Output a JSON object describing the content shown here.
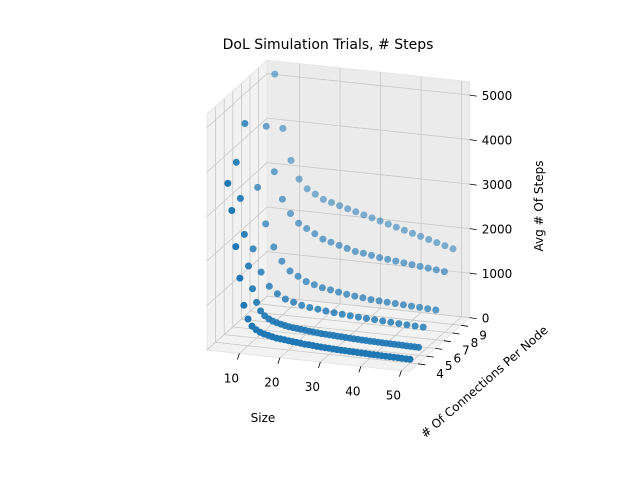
{
  "chart_data": {
    "type": "scatter3d",
    "title": "DoL Simulation Trials, # Steps",
    "xlabel": "Size",
    "ylabel": "# Of Connections Per Node",
    "zlabel": "Avg # Of Steps",
    "xlim": [
      2,
      52
    ],
    "ylim": [
      3,
      10
    ],
    "zlim": [
      0,
      5300
    ],
    "xticks": [
      10,
      20,
      30,
      40,
      50
    ],
    "yticks": [
      4,
      5,
      6,
      7,
      8,
      9
    ],
    "zticks": [
      0,
      1000,
      2000,
      3000,
      4000,
      5000
    ],
    "grid": true,
    "color": "#1f77b4",
    "series": [
      {
        "y": 4,
        "x": [
          5,
          6,
          7,
          8,
          9,
          10,
          11,
          12,
          13,
          14,
          15,
          16,
          17,
          18,
          19,
          20,
          21,
          22,
          23,
          24,
          25,
          26,
          27,
          28,
          29,
          30,
          31,
          32,
          33,
          34,
          35,
          36,
          37,
          38,
          39,
          40,
          41,
          42,
          43,
          44,
          45,
          46,
          47,
          48,
          49,
          50
        ],
        "z": [
          3600,
          3000,
          2200,
          1500,
          900,
          600,
          450,
          380,
          330,
          300,
          280,
          260,
          240,
          230,
          220,
          210,
          200,
          190,
          180,
          170,
          165,
          160,
          150,
          145,
          140,
          135,
          130,
          125,
          120,
          118,
          115,
          112,
          110,
          108,
          105,
          102,
          100,
          98,
          96,
          94,
          92,
          90,
          88,
          86,
          84,
          82
        ]
      },
      {
        "y": 5,
        "x": [
          5,
          6,
          7,
          8,
          9,
          10,
          11,
          12,
          13,
          14,
          15,
          16,
          17,
          18,
          19,
          20,
          21,
          22,
          23,
          24,
          25,
          26,
          27,
          28,
          29,
          30,
          31,
          32,
          33,
          34,
          35,
          36,
          37,
          38,
          39,
          40,
          41,
          42,
          43,
          44,
          45,
          46,
          47,
          48,
          49,
          50
        ],
        "z": [
          3900,
          3100,
          2300,
          1600,
          1100,
          800,
          620,
          520,
          460,
          420,
          390,
          370,
          350,
          330,
          320,
          310,
          300,
          290,
          280,
          270,
          262,
          255,
          250,
          245,
          240,
          235,
          230,
          225,
          220,
          215,
          212,
          208,
          205,
          202,
          200,
          197,
          195,
          193,
          190,
          188,
          186,
          184,
          182,
          180,
          178,
          176
        ]
      },
      {
        "y": 6,
        "x": [
          5,
          7,
          9,
          11,
          13,
          15,
          17,
          19,
          21,
          23,
          25,
          27,
          29,
          31,
          33,
          35,
          37,
          39,
          41,
          43,
          45,
          47,
          49
        ],
        "z": [
          4600,
          1800,
          1300,
          1000,
          850,
          750,
          700,
          650,
          620,
          600,
          580,
          560,
          545,
          530,
          520,
          510,
          500,
          490,
          480,
          470,
          460,
          455,
          450
        ]
      },
      {
        "y": 7,
        "x": [
          6,
          8,
          10,
          12,
          14,
          16,
          18,
          20,
          22,
          24,
          26,
          28,
          30,
          32,
          34,
          36,
          38,
          40,
          42,
          44,
          46,
          48,
          50
        ],
        "z": [
          3000,
          2200,
          1700,
          1400,
          1200,
          1100,
          1000,
          950,
          900,
          870,
          840,
          810,
          790,
          770,
          750,
          740,
          730,
          720,
          710,
          700,
          690,
          680,
          670
        ]
      },
      {
        "y": 8,
        "x": [
          6,
          8,
          10,
          12,
          14,
          16,
          18,
          20,
          22,
          24,
          26,
          28,
          30,
          32,
          34,
          36,
          38,
          40,
          42,
          44,
          46,
          48,
          50
        ],
        "z": [
          4200,
          3200,
          2600,
          2300,
          2100,
          2000,
          1900,
          1800,
          1750,
          1700,
          1650,
          1600,
          1580,
          1550,
          1520,
          1500,
          1480,
          1460,
          1440,
          1420,
          1400,
          1380,
          1360
        ]
      },
      {
        "y": 9,
        "x": [
          6,
          8,
          10,
          12,
          14,
          16,
          18,
          20,
          22,
          24,
          26,
          28,
          30,
          32,
          34,
          36,
          38,
          40,
          42,
          44,
          46,
          48,
          50
        ],
        "z": [
          5200,
          4000,
          3300,
          2900,
          2700,
          2600,
          2500,
          2450,
          2400,
          2350,
          2300,
          2250,
          2200,
          2150,
          2100,
          2050,
          2000,
          1950,
          1900,
          1850,
          1800,
          1750,
          1700
        ]
      }
    ]
  }
}
